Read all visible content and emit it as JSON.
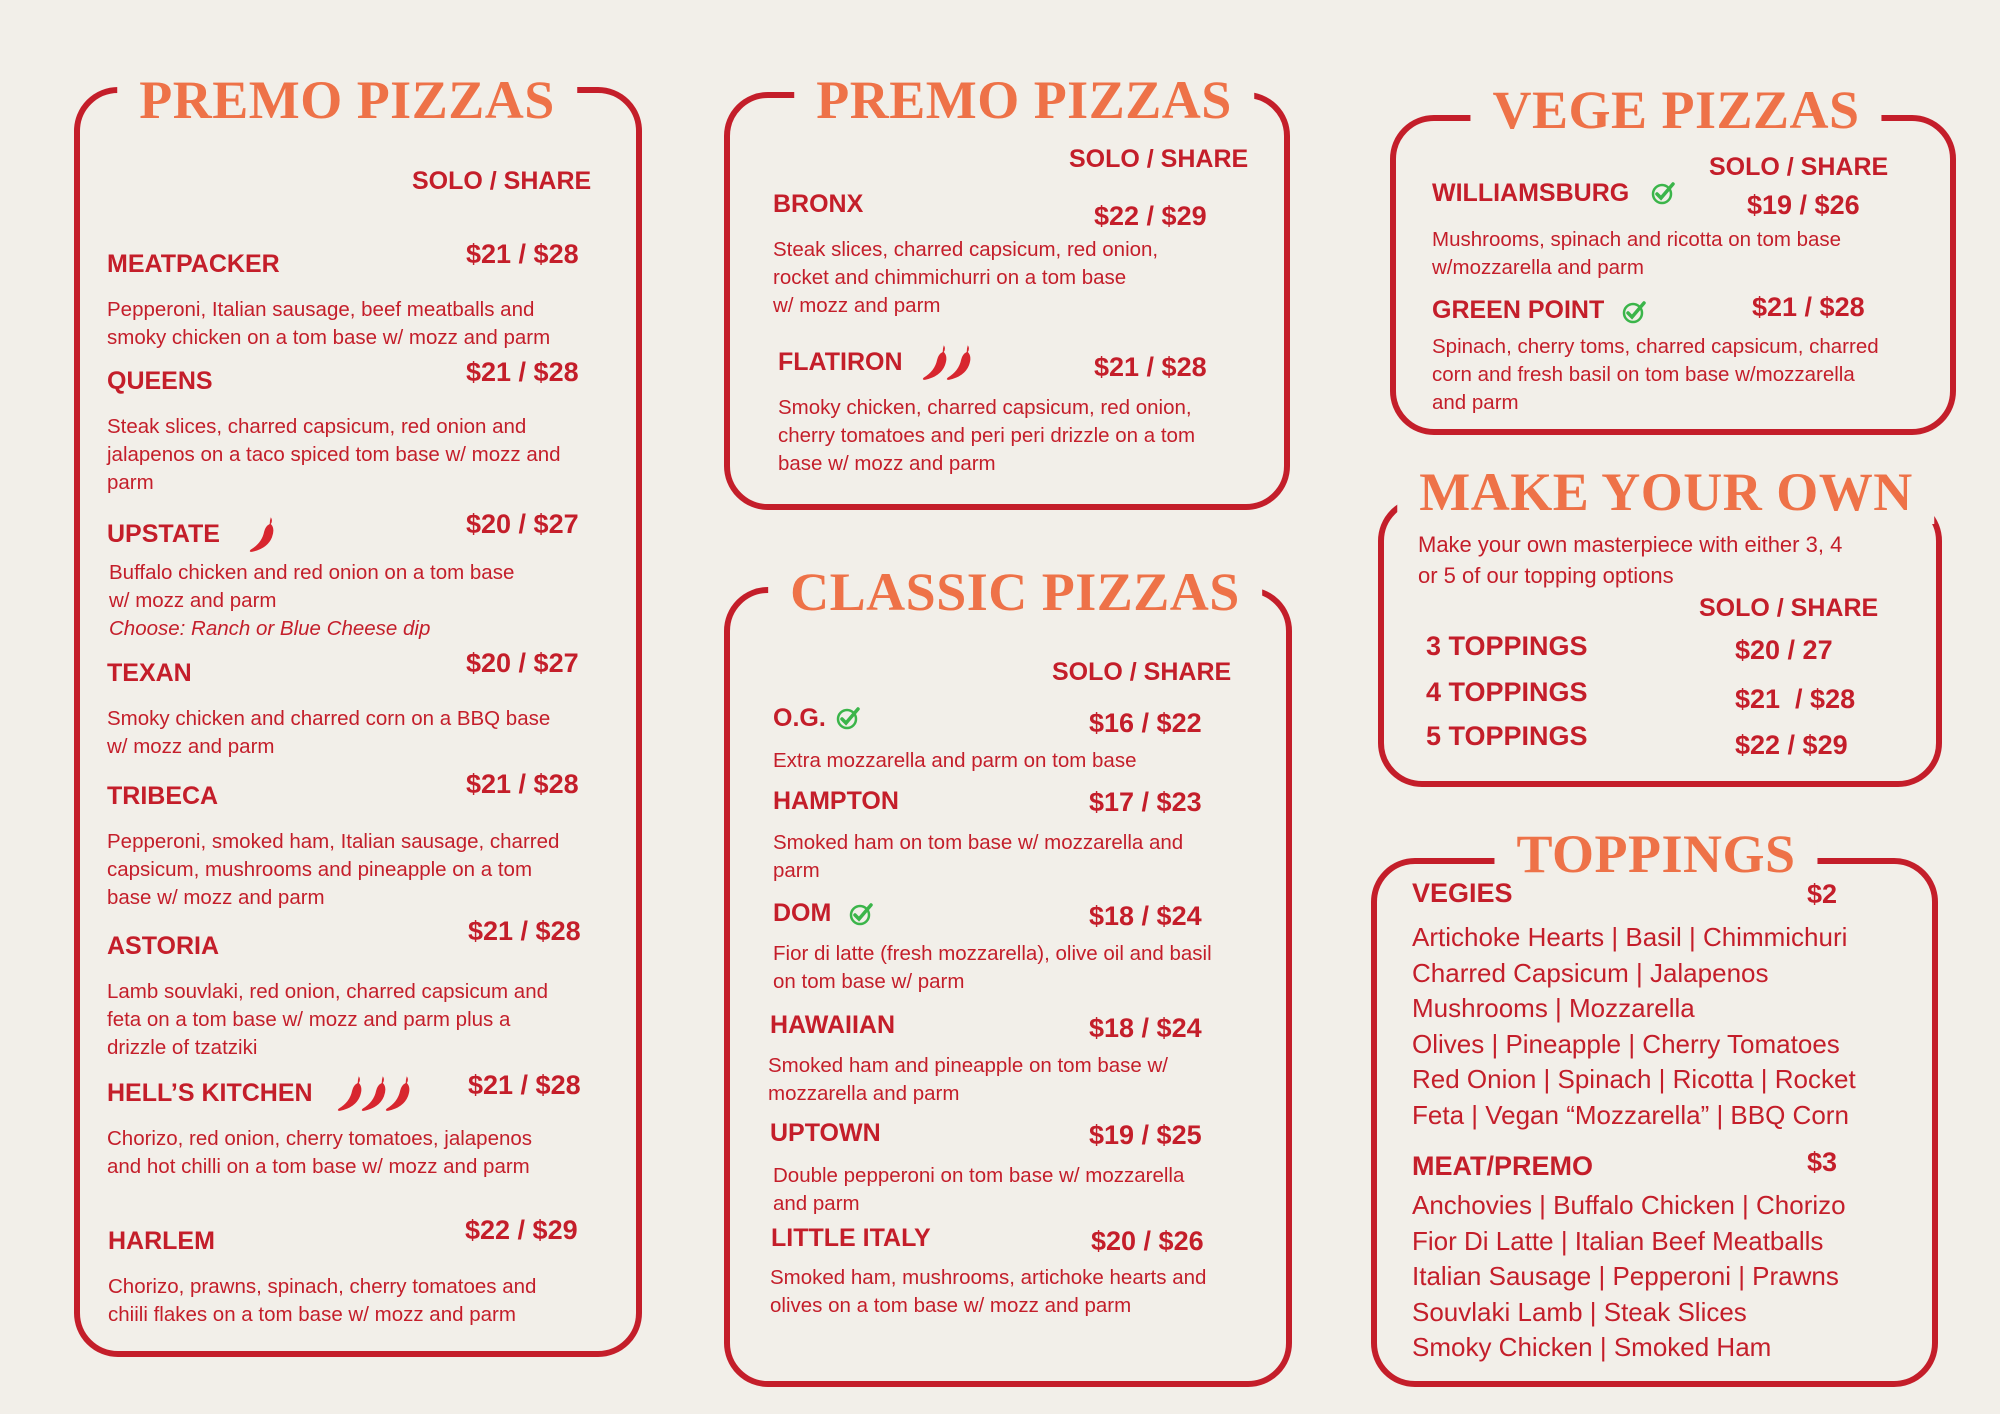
{
  "colors": {
    "background": "#f2efe9",
    "red": "#c41e2a",
    "orange": "#ee7248",
    "check": "#3bb54a"
  },
  "solo_share": "SOLO / SHARE",
  "premo1": {
    "title": "PREMO PIZZAS",
    "items": [
      {
        "name": "MEATPACKER",
        "price": "$21 / $28",
        "desc": "Pepperoni, Italian sausage, beef meatballs and\nsmoky chicken on a tom base w/ mozz and parm"
      },
      {
        "name": "QUEENS",
        "price": "$21 / $28",
        "desc": "Steak slices, charred capsicum, red onion and\njalapenos on a taco spiced tom base w/ mozz and\nparm"
      },
      {
        "name": "UPSTATE",
        "price": "$20 / $27",
        "desc": "Buffalo chicken and red onion on a tom base\nw/ mozz and parm",
        "note": "Choose: Ranch or Blue Cheese dip",
        "icon": "chili-icon"
      },
      {
        "name": "TEXAN",
        "price": "$20 / $27",
        "desc": "Smoky chicken and charred corn on a BBQ base\nw/ mozz and parm"
      },
      {
        "name": "TRIBECA",
        "price": "$21 / $28",
        "desc": "Pepperoni, smoked ham, Italian sausage, charred\ncapsicum, mushrooms and pineapple on a tom\nbase w/ mozz and parm"
      },
      {
        "name": "ASTORIA",
        "price": "$21 / $28",
        "desc": "Lamb souvlaki, red onion, charred capsicum and\nfeta on a tom base w/ mozz and parm plus a\ndrizzle of tzatziki"
      },
      {
        "name": "HELL’S KITCHEN",
        "price": "$21 / $28",
        "desc": "Chorizo, red onion, cherry tomatoes, jalapenos\nand hot chilli on a tom base w/ mozz and parm",
        "icon": "chili-icon x3"
      },
      {
        "name": "HARLEM",
        "price": "$22 / $29",
        "desc": "Chorizo, prawns, spinach, cherry tomatoes and\nchiili flakes on a tom base w/ mozz and parm"
      }
    ]
  },
  "premo2": {
    "title": "PREMO PIZZAS",
    "items": [
      {
        "name": "BRONX",
        "price": "$22 / $29",
        "desc": "Steak slices, charred capsicum, red onion,\nrocket and chimmichurri on a tom base\nw/ mozz and parm"
      },
      {
        "name": "FLATIRON",
        "price": "$21 / $28",
        "desc": "Smoky chicken, charred capsicum, red onion,\ncherry tomatoes and peri peri drizzle on a tom\nbase w/ mozz and parm",
        "icon": "chili-icon x2"
      }
    ]
  },
  "classic": {
    "title": "CLASSIC PIZZAS",
    "items": [
      {
        "name": "O.G.",
        "price": "$16 / $22",
        "desc": "Extra mozzarella and parm on tom base",
        "icon": "vegetarian-check-icon"
      },
      {
        "name": "HAMPTON",
        "price": "$17 / $23",
        "desc": "Smoked ham on tom base w/ mozzarella and\nparm"
      },
      {
        "name": "DOM",
        "price": "$18 / $24",
        "desc": "Fior di latte (fresh mozzarella), olive oil and basil\non tom base w/ parm",
        "icon": "vegetarian-check-icon"
      },
      {
        "name": "HAWAIIAN",
        "price": "$18 / $24",
        "desc": "Smoked ham and pineapple on tom base w/\nmozzarella and parm"
      },
      {
        "name": "UPTOWN",
        "price": "$19 / $25",
        "desc": "Double pepperoni on tom base w/ mozzarella\nand parm"
      },
      {
        "name": "LITTLE ITALY",
        "price": "$20 / $26",
        "desc": "Smoked ham, mushrooms, artichoke hearts and\nolives on a tom base w/ mozz and parm"
      }
    ]
  },
  "vege": {
    "title": "VEGE PIZZAS",
    "items": [
      {
        "name": "WILLIAMSBURG",
        "price": "$19 / $26",
        "desc": "Mushrooms, spinach and ricotta on tom base\nw/mozzarella and parm",
        "icon": "vegetarian-check-icon"
      },
      {
        "name": "GREEN POINT",
        "price": "$21 / $28",
        "desc": "Spinach, cherry toms, charred capsicum, charred\ncorn and fresh basil on tom base w/mozzarella\nand parm",
        "icon": "vegetarian-check-icon"
      }
    ]
  },
  "make_own": {
    "title": "MAKE YOUR OWN",
    "desc": "Make your own masterpiece with either 3, 4\nor 5 of our topping options",
    "options": [
      {
        "name": "3 TOPPINGS",
        "price": "$20 / 27"
      },
      {
        "name": "4 TOPPINGS",
        "price": "$21  / $28"
      },
      {
        "name": "5 TOPPINGS",
        "price": "$22 / $29"
      }
    ]
  },
  "toppings": {
    "title": "TOPPINGS",
    "vegies": {
      "label": "VEGIES",
      "price": "$2",
      "list": "Artichoke Hearts | Basil | Chimmichuri\nCharred Capsicum | Jalapenos\nMushrooms | Mozzarella\nOlives | Pineapple | Cherry Tomatoes\nRed Onion | Spinach | Ricotta | Rocket\nFeta | Vegan “Mozzarella” | BBQ Corn"
    },
    "meat": {
      "label": "MEAT/PREMO",
      "price": "$3",
      "list": "Anchovies | Buffalo Chicken | Chorizo\nFior Di Latte | Italian Beef Meatballs\nItalian Sausage | Pepperoni | Prawns\nSouvlaki Lamb | Steak Slices\nSmoky Chicken | Smoked Ham"
    }
  }
}
